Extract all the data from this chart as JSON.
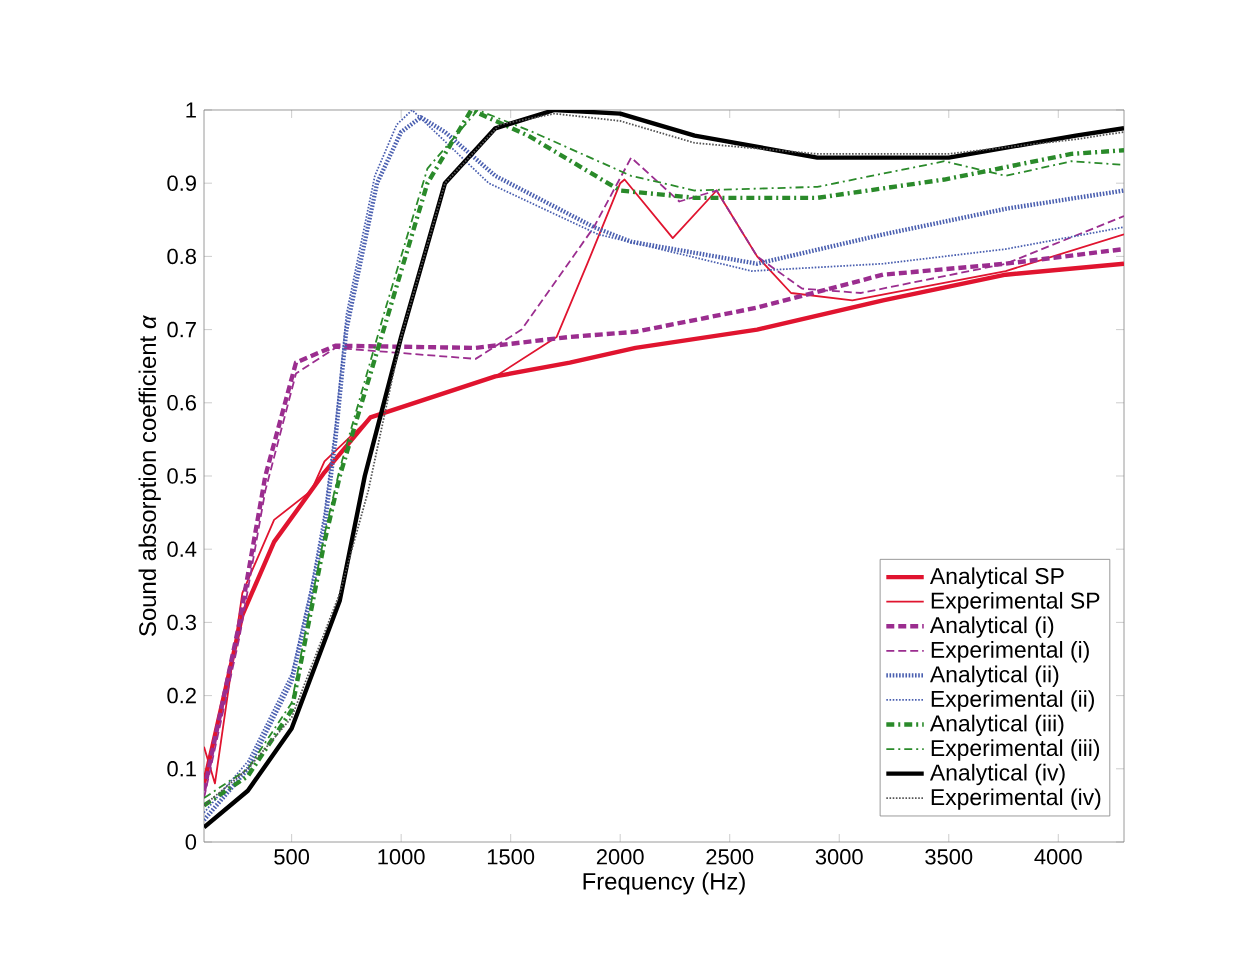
{
  "chart_data": {
    "type": "line",
    "xlabel": "Frequency (Hz)",
    "ylabel": "Sound absorption coefficient *α*",
    "xlim": [
      100,
      4300
    ],
    "ylim": [
      0,
      1
    ],
    "xticks": [
      500,
      1000,
      1500,
      2000,
      2500,
      3000,
      3500,
      4000
    ],
    "yticks": [
      0,
      0.1,
      0.2,
      0.3,
      0.4,
      0.5,
      0.6,
      0.7,
      0.8,
      0.9,
      1
    ],
    "grid": false,
    "legend": "bottom right",
    "marker": "none",
    "series": [
      {
        "name": "Analytical SP",
        "color": "#e0142f",
        "line_style": "solid",
        "x": [
          100,
          275,
          420,
          650,
          860,
          1430,
          1770,
          2070,
          2625,
          3200,
          3760,
          4300
        ],
        "values": [
          0.08,
          0.31,
          0.41,
          0.505,
          0.58,
          0.636,
          0.655,
          0.675,
          0.7,
          0.74,
          0.775,
          0.79
        ]
      },
      {
        "name": "Experimental SP",
        "color": "#e0142f",
        "line_style": "solid",
        "x": [
          100,
          150,
          275,
          420,
          590,
          650,
          860,
          1430,
          1710,
          1850,
          2000,
          2020,
          2240,
          2440,
          2625,
          2780,
          3060,
          3760,
          4300
        ],
        "values": [
          0.13,
          0.08,
          0.34,
          0.44,
          0.48,
          0.52,
          0.58,
          0.636,
          0.69,
          0.79,
          0.9,
          0.905,
          0.825,
          0.89,
          0.8,
          0.75,
          0.74,
          0.78,
          0.83
        ]
      },
      {
        "name": "Analytical (i)",
        "color": "#9b2d8f",
        "line_style": "dashed",
        "x": [
          100,
          262,
          380,
          520,
          700,
          1340,
          1770,
          2070,
          2625,
          3200,
          3760,
          4300
        ],
        "values": [
          0.07,
          0.3,
          0.5,
          0.655,
          0.678,
          0.675,
          0.69,
          0.697,
          0.73,
          0.775,
          0.79,
          0.81
        ]
      },
      {
        "name": "Experimental (i)",
        "color": "#9b2d8f",
        "line_style": "dashed",
        "x": [
          100,
          262,
          380,
          520,
          700,
          1340,
          1550,
          1880,
          2050,
          2270,
          2440,
          2625,
          2830,
          3100,
          3760,
          4300
        ],
        "values": [
          0.06,
          0.28,
          0.48,
          0.64,
          0.675,
          0.66,
          0.7,
          0.84,
          0.935,
          0.875,
          0.89,
          0.8,
          0.756,
          0.75,
          0.79,
          0.855
        ]
      },
      {
        "name": "Analytical (ii)",
        "color": "#4a5fb0",
        "line_style": "dotted",
        "x": [
          100,
          300,
          500,
          590,
          650,
          700,
          750,
          890,
          1000,
          1090,
          1200,
          1430,
          1880,
          2050,
          2625,
          3200,
          3760,
          4300
        ],
        "values": [
          0.03,
          0.1,
          0.22,
          0.34,
          0.43,
          0.55,
          0.7,
          0.9,
          0.97,
          0.99,
          0.97,
          0.91,
          0.84,
          0.82,
          0.79,
          0.83,
          0.865,
          0.89
        ]
      },
      {
        "name": "Experimental (ii)",
        "color": "#4a5fb0",
        "line_style": "dotted",
        "x": [
          100,
          300,
          500,
          590,
          650,
          700,
          750,
          880,
          980,
          1050,
          1400,
          1900,
          2600,
          3200,
          3760,
          4300
        ],
        "values": [
          0.04,
          0.11,
          0.23,
          0.35,
          0.45,
          0.57,
          0.72,
          0.91,
          0.98,
          1.0,
          0.9,
          0.83,
          0.78,
          0.79,
          0.81,
          0.84
        ]
      },
      {
        "name": "Analytical (iii)",
        "color": "#2a8a2a",
        "line_style": "dashdotted",
        "x": [
          100,
          300,
          500,
          650,
          720,
          920,
          1120,
          1320,
          1580,
          2000,
          2340,
          2900,
          3480,
          4060,
          4300
        ],
        "values": [
          0.05,
          0.09,
          0.18,
          0.41,
          0.5,
          0.7,
          0.9,
          1.0,
          0.965,
          0.89,
          0.88,
          0.88,
          0.905,
          0.94,
          0.945
        ]
      },
      {
        "name": "Experimental (iii)",
        "color": "#2a8a2a",
        "line_style": "dashdotted",
        "x": [
          100,
          300,
          500,
          650,
          720,
          920,
          1120,
          1350,
          1600,
          2050,
          2340,
          2900,
          3480,
          3760,
          4060,
          4300
        ],
        "values": [
          0.06,
          0.1,
          0.19,
          0.42,
          0.51,
          0.72,
          0.92,
          1.0,
          0.97,
          0.91,
          0.89,
          0.895,
          0.93,
          0.91,
          0.93,
          0.925
        ]
      },
      {
        "name": "Analytical (iv)",
        "color": "#000000",
        "line_style": "solid",
        "x": [
          100,
          300,
          500,
          720,
          834,
          1000,
          1200,
          1430,
          1700,
          2000,
          2340,
          2900,
          3500,
          4080,
          4300
        ],
        "values": [
          0.02,
          0.07,
          0.155,
          0.33,
          0.5,
          0.69,
          0.9,
          0.975,
          1.0,
          0.995,
          0.965,
          0.935,
          0.935,
          0.965,
          0.975
        ]
      },
      {
        "name": "Experimental (iv)",
        "color": "#555555",
        "line_style": "dotted",
        "x": [
          100,
          300,
          500,
          720,
          850,
          1000,
          1200,
          1450,
          1700,
          2000,
          2340,
          2900,
          3500,
          4080,
          4300
        ],
        "values": [
          0.05,
          0.1,
          0.17,
          0.34,
          0.48,
          0.69,
          0.9,
          0.98,
          0.995,
          0.985,
          0.955,
          0.94,
          0.94,
          0.96,
          0.97
        ]
      }
    ]
  }
}
